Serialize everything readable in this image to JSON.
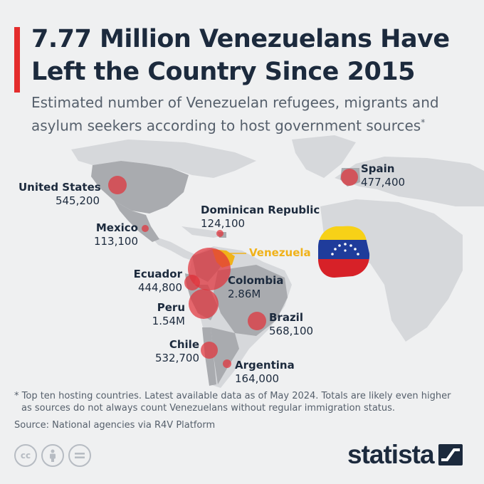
{
  "title": "7.77 Million Venezuelans Have Left the Country Since 2015",
  "subtitle": "Estimated number of Venezuelan refugees, migrants and asylum seekers according to host government sources",
  "subtitle_mark": "*",
  "venezuela_label": "Venezuela",
  "countries": [
    {
      "name": "United States",
      "value": "545,200"
    },
    {
      "name": "Mexico",
      "value": "113,100"
    },
    {
      "name": "Dominican Republic",
      "value": "124,100"
    },
    {
      "name": "Spain",
      "value": "477,400"
    },
    {
      "name": "Ecuador",
      "value": "444,800"
    },
    {
      "name": "Colombia",
      "value": "2.86M"
    },
    {
      "name": "Peru",
      "value": "1.54M"
    },
    {
      "name": "Brazil",
      "value": "568,100"
    },
    {
      "name": "Chile",
      "value": "532,700"
    },
    {
      "name": "Argentina",
      "value": "164,000"
    }
  ],
  "footnote_line1": "* Top ten hosting countries. Latest available data as of May 2024. Totals are likely even higher",
  "footnote_line2": "as sources do not always count Venezuelans without regular immigration status.",
  "source": "Source: National agencies via R4V Platform",
  "license_icons": [
    "cc-icon",
    "attribution-icon",
    "no-derivatives-icon"
  ],
  "brand": "statista",
  "colors": {
    "accent": "#e42c2c",
    "title": "#1c2a3d",
    "land": "#c9cbce",
    "highlight_land": "#a9abaf",
    "bubble": "#e0323a",
    "venezuela": "#f0b21a",
    "flag_yellow": "#f7d117",
    "flag_blue": "#1f3c9b",
    "flag_red": "#d72128"
  }
}
